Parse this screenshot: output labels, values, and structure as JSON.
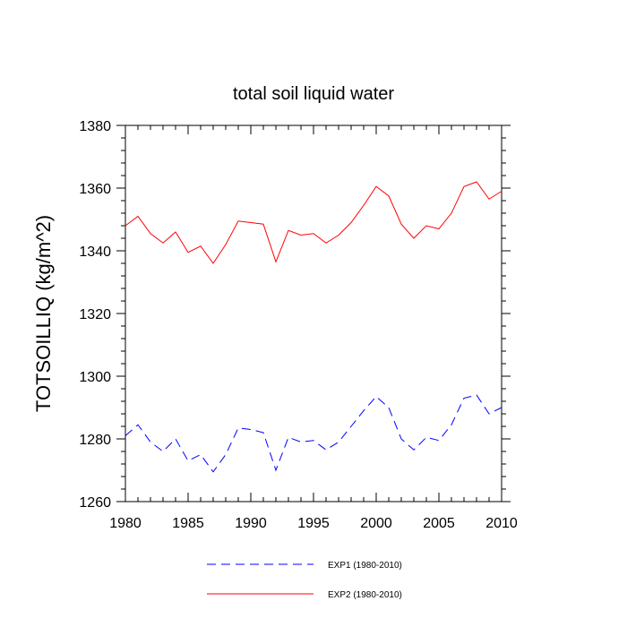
{
  "chart_data": {
    "type": "line",
    "title": "total soil liquid water",
    "xlabel": "",
    "ylabel": "TOTSOILLIQ  (kg/m^2)",
    "xlim": [
      1980,
      2010
    ],
    "ylim": [
      1260,
      1380
    ],
    "xticks": [
      1980,
      1985,
      1990,
      1995,
      2000,
      2005,
      2010
    ],
    "yticks": [
      1260,
      1280,
      1300,
      1320,
      1340,
      1360,
      1380
    ],
    "x": [
      1980,
      1981,
      1982,
      1983,
      1984,
      1985,
      1986,
      1987,
      1988,
      1989,
      1990,
      1991,
      1992,
      1993,
      1994,
      1995,
      1996,
      1997,
      1998,
      1999,
      2000,
      2001,
      2002,
      2003,
      2004,
      2005,
      2006,
      2007,
      2008,
      2009,
      2010
    ],
    "series": [
      {
        "name": "EXP1 (1980-2010)",
        "color": "#0000ff",
        "style": "dashed",
        "values": [
          1281,
          1284.5,
          1279,
          1276,
          1280,
          1273,
          1275,
          1269.5,
          1275,
          1283.5,
          1283,
          1282,
          1270,
          1280.5,
          1279,
          1279.5,
          1276.5,
          1279,
          1284,
          1289,
          1293.5,
          1290,
          1280,
          1276.5,
          1280.5,
          1279.5,
          1284.5,
          1293,
          1294,
          1288,
          1290
        ]
      },
      {
        "name": "EXP2 (1980-2010)",
        "color": "#ff0000",
        "style": "solid",
        "values": [
          1348,
          1351,
          1345.5,
          1342.5,
          1346,
          1339.5,
          1341.5,
          1336,
          1342,
          1349.5,
          1349,
          1348.5,
          1336.5,
          1346.5,
          1345,
          1345.5,
          1342.5,
          1345,
          1349,
          1354.5,
          1360.5,
          1357.5,
          1348.5,
          1344,
          1348,
          1347,
          1352,
          1360.5,
          1362,
          1356.5,
          1359
        ]
      }
    ],
    "legend": "bottom"
  }
}
